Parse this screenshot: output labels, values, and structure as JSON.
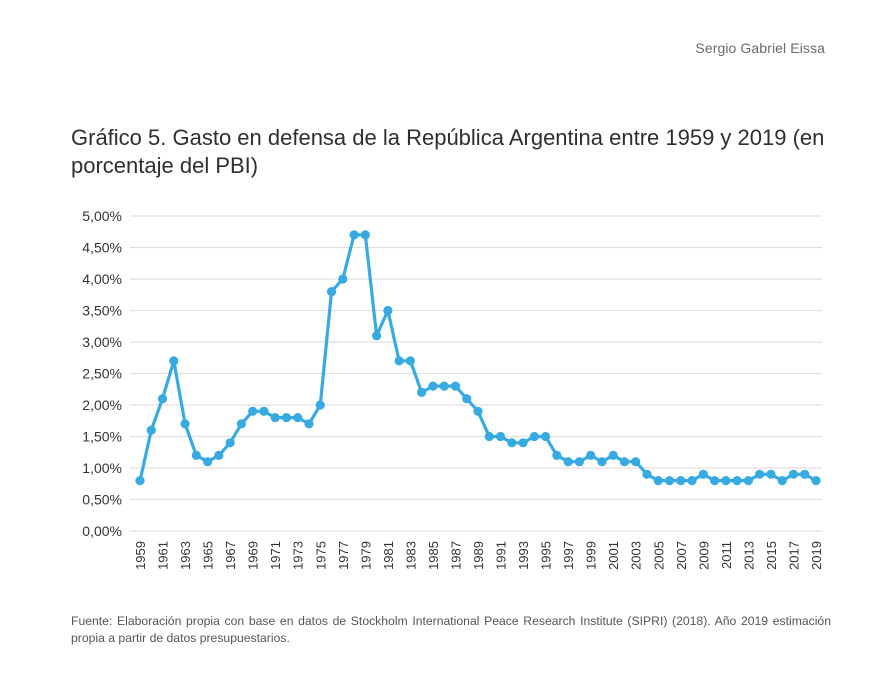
{
  "header": {
    "author": "Sergio Gabriel Eissa"
  },
  "chart_data": {
    "type": "line",
    "title": "Gráfico 5. Gasto en defensa de la República Argentina entre 1959 y 2019 (en porcentaje del PBI)",
    "xlabel": "",
    "ylabel": "",
    "ylim": [
      0,
      5
    ],
    "y_ticks": [
      "0,00%",
      "0,50%",
      "1,00%",
      "1,50%",
      "2,00%",
      "2,50%",
      "3,00%",
      "3,50%",
      "4,00%",
      "4,50%",
      "5,00%"
    ],
    "grid": true,
    "legend": "none",
    "series_color": "#37abe1",
    "x": [
      1959,
      1960,
      1961,
      1962,
      1963,
      1964,
      1965,
      1966,
      1967,
      1968,
      1969,
      1970,
      1971,
      1972,
      1973,
      1974,
      1975,
      1976,
      1977,
      1978,
      1979,
      1980,
      1981,
      1982,
      1983,
      1984,
      1985,
      1986,
      1987,
      1988,
      1989,
      1990,
      1991,
      1992,
      1993,
      1994,
      1995,
      1996,
      1997,
      1998,
      1999,
      2000,
      2001,
      2002,
      2003,
      2004,
      2005,
      2006,
      2007,
      2008,
      2009,
      2010,
      2011,
      2012,
      2013,
      2014,
      2015,
      2016,
      2017,
      2018,
      2019
    ],
    "x_tick_labels": [
      "1959",
      "1961",
      "1963",
      "1965",
      "1967",
      "1969",
      "1971",
      "1973",
      "1975",
      "1977",
      "1979",
      "1981",
      "1983",
      "1985",
      "1987",
      "1989",
      "1991",
      "1993",
      "1995",
      "1997",
      "1999",
      "2001",
      "2003",
      "2005",
      "2007",
      "2009",
      "2011",
      "2013",
      "2015",
      "2017",
      "2019"
    ],
    "series": [
      {
        "name": "Gasto en defensa (% del PBI)",
        "values": [
          0.8,
          1.6,
          2.1,
          2.7,
          1.7,
          1.2,
          1.1,
          1.2,
          1.4,
          1.7,
          1.9,
          1.9,
          1.8,
          1.8,
          1.8,
          1.7,
          2.0,
          3.8,
          4.0,
          4.7,
          4.7,
          3.1,
          3.5,
          2.7,
          2.7,
          2.2,
          2.3,
          2.3,
          2.3,
          2.1,
          1.9,
          1.5,
          1.5,
          1.4,
          1.4,
          1.5,
          1.5,
          1.2,
          1.1,
          1.1,
          1.2,
          1.1,
          1.2,
          1.1,
          1.1,
          0.9,
          0.8,
          0.8,
          0.8,
          0.8,
          0.9,
          0.8,
          0.8,
          0.8,
          0.8,
          0.9,
          0.9,
          0.8,
          0.9,
          0.9,
          0.8
        ]
      }
    ]
  },
  "footer": {
    "source": "Fuente: Elaboración propia con base en datos de Stockholm International Peace Research Institute (SIPRI) (2018). Año 2019 estimación propia a partir de datos presupuestarios."
  }
}
